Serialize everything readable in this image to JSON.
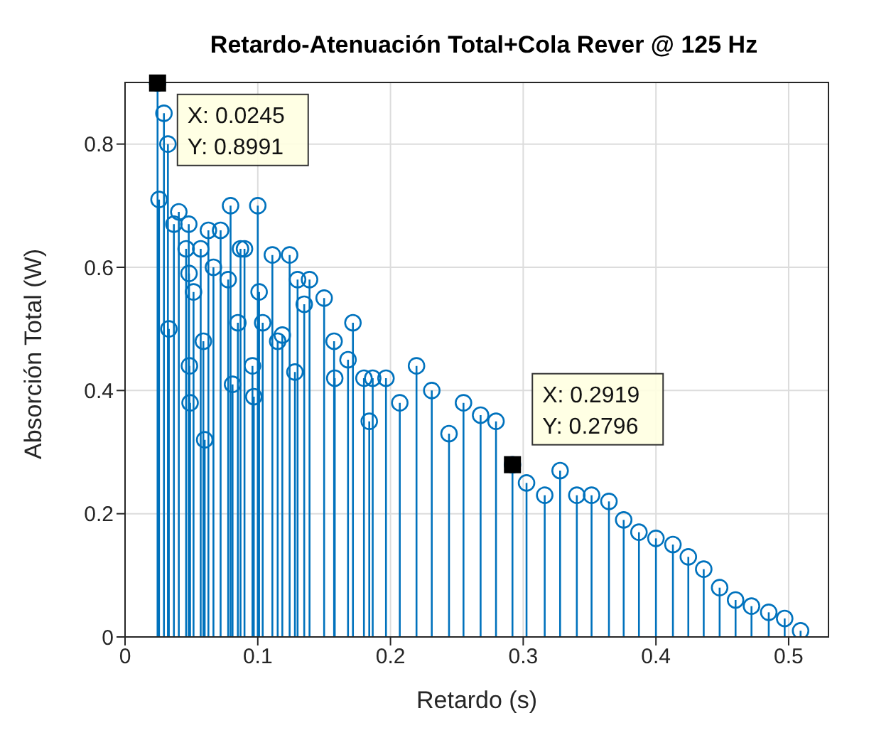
{
  "chart_data": {
    "type": "lollipop",
    "title": "Retardo-Atenuación Total+Cola Rever @ 125 Hz",
    "xlabel": "Retardo (s)",
    "ylabel": "Absorción Total (W)",
    "x": [
      0.0245,
      0.0256,
      0.0293,
      0.0323,
      0.033,
      0.0368,
      0.0405,
      0.046,
      0.048,
      0.0482,
      0.0485,
      0.049,
      0.0516,
      0.057,
      0.059,
      0.06,
      0.0628,
      0.0666,
      0.072,
      0.0777,
      0.0795,
      0.081,
      0.085,
      0.087,
      0.09,
      0.096,
      0.097,
      0.1,
      0.101,
      0.1037,
      0.111,
      0.115,
      0.1185,
      0.124,
      0.128,
      0.13,
      0.135,
      0.139,
      0.15,
      0.1575,
      0.158,
      0.168,
      0.1717,
      0.18,
      0.184,
      0.1866,
      0.1966,
      0.207,
      0.2196,
      0.2311,
      0.2441,
      0.255,
      0.2679,
      0.2795,
      0.2919,
      0.3025,
      0.3162,
      0.3278,
      0.3404,
      0.3515,
      0.3646,
      0.3757,
      0.3872,
      0.4,
      0.4128,
      0.4244,
      0.436,
      0.448,
      0.46,
      0.472,
      0.485,
      0.497,
      0.509
    ],
    "series": [
      {
        "color": "#0072bd",
        "values": [
          0.8991,
          0.71,
          0.85,
          0.8,
          0.5,
          0.67,
          0.69,
          0.63,
          0.67,
          0.59,
          0.44,
          0.38,
          0.56,
          0.63,
          0.48,
          0.32,
          0.66,
          0.6,
          0.66,
          0.58,
          0.7,
          0.41,
          0.51,
          0.63,
          0.63,
          0.44,
          0.39,
          0.7,
          0.56,
          0.51,
          0.62,
          0.48,
          0.49,
          0.62,
          0.43,
          0.58,
          0.54,
          0.58,
          0.55,
          0.48,
          0.42,
          0.45,
          0.51,
          0.42,
          0.35,
          0.42,
          0.42,
          0.38,
          0.44,
          0.4,
          0.33,
          0.38,
          0.36,
          0.35,
          0.2796,
          0.25,
          0.23,
          0.27,
          0.23,
          0.23,
          0.22,
          0.19,
          0.17,
          0.16,
          0.15,
          0.13,
          0.11,
          0.08,
          0.06,
          0.05,
          0.04,
          0.03,
          0.01
        ]
      }
    ],
    "xlim": [
      0,
      0.53
    ],
    "xticks": [
      0,
      0.1,
      0.2,
      0.3,
      0.4,
      0.5
    ],
    "ylim": [
      0,
      0.9
    ],
    "yticks": [
      0,
      0.2,
      0.4,
      0.6,
      0.8
    ],
    "grid": true,
    "marker": "circle",
    "annotations": [
      {
        "text": "X: 0.0245\nY: 0.8991",
        "x": 0.0245,
        "y": 0.8991
      },
      {
        "text": "X: 0.2919\nY: 0.2796",
        "x": 0.2919,
        "y": 0.2796
      }
    ]
  }
}
